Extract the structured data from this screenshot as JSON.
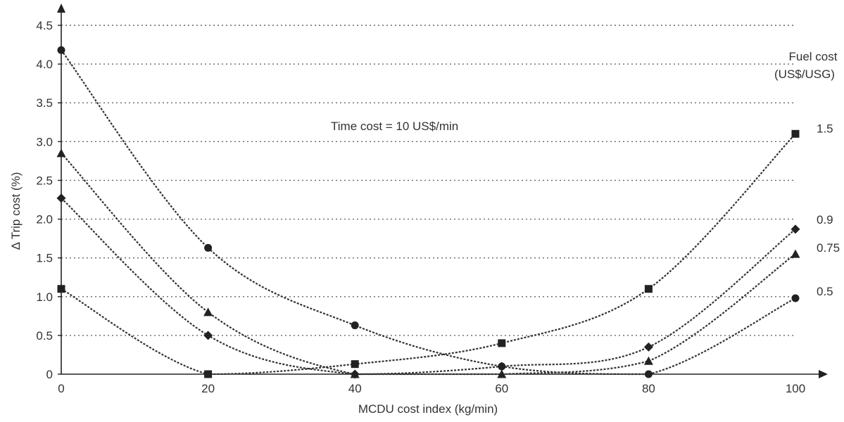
{
  "chart_data": {
    "type": "line",
    "title": "",
    "xlabel": "MCDU cost index (kg/min)",
    "ylabel": "Δ Trip cost (%)",
    "xlim": [
      0,
      100
    ],
    "ylim": [
      0,
      4.5
    ],
    "x_ticks": [
      0,
      20,
      40,
      60,
      80,
      100
    ],
    "y_ticks": [
      0,
      0.5,
      1.0,
      1.5,
      2.0,
      2.5,
      3.0,
      3.5,
      4.0,
      4.5
    ],
    "y_tick_labels": [
      "0",
      "0.5",
      "1.0",
      "1.5",
      "2.0",
      "2.5",
      "3.0",
      "3.5",
      "4.0",
      "4.5"
    ],
    "grid": "horizontal dotted",
    "annotation": "Time cost = 10 US$/min",
    "legend_title": [
      "Fuel cost",
      "(US$/USG)"
    ],
    "series": [
      {
        "name": "1.5",
        "marker": "square",
        "x": [
          0,
          20,
          40,
          60,
          80,
          100
        ],
        "y": [
          1.1,
          0.0,
          0.13,
          0.4,
          1.1,
          3.1
        ]
      },
      {
        "name": "0.9",
        "marker": "diamond",
        "x": [
          0,
          20,
          40,
          60,
          80,
          100
        ],
        "y": [
          2.27,
          0.5,
          0.0,
          0.1,
          0.35,
          1.87
        ]
      },
      {
        "name": "0.75",
        "marker": "triangle",
        "x": [
          0,
          20,
          40,
          60,
          80,
          100
        ],
        "y": [
          2.85,
          0.8,
          0.0,
          0.0,
          0.17,
          1.55
        ]
      },
      {
        "name": "0.5",
        "marker": "circle",
        "x": [
          0,
          20,
          40,
          60,
          80,
          100
        ],
        "y": [
          4.18,
          1.63,
          0.63,
          0.1,
          0.0,
          0.98
        ]
      }
    ]
  }
}
